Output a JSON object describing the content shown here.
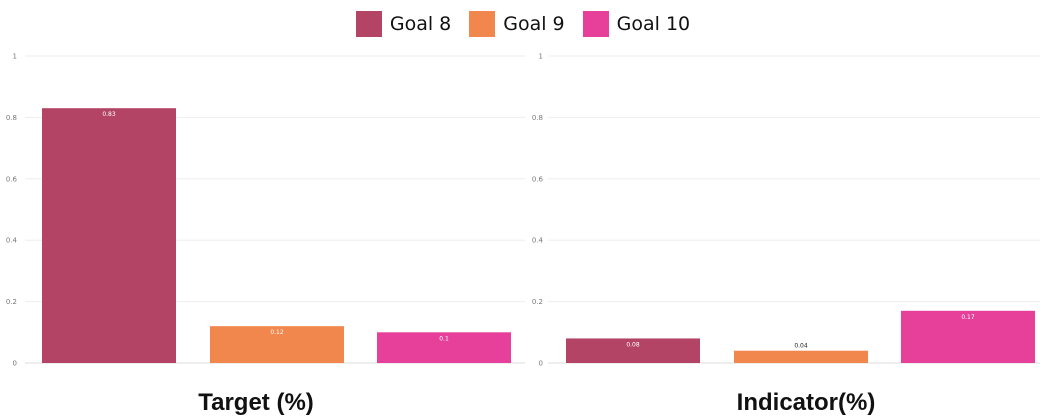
{
  "legend": [
    {
      "label": "Goal 8",
      "color": "#b34466"
    },
    {
      "label": "Goal 9",
      "color": "#f2874e"
    },
    {
      "label": "Goal 10",
      "color": "#e6409b"
    }
  ],
  "chart_data": [
    {
      "type": "bar",
      "title": "Target (%)",
      "categories": [
        "Goal 8",
        "Goal 9",
        "Goal 10"
      ],
      "values": [
        0.83,
        0.12,
        0.1
      ],
      "data_labels": [
        "0.83",
        "0.12",
        "0.1"
      ],
      "ylim": [
        0,
        1
      ],
      "yticks": [
        "0",
        "0.2",
        "0.4",
        "0.6",
        "0.8",
        "1"
      ],
      "grid": true,
      "legend_position": "top-center"
    },
    {
      "type": "bar",
      "title": "Indicator(%)",
      "categories": [
        "Goal 8",
        "Goal 9",
        "Goal 10"
      ],
      "values": [
        0.08,
        0.04,
        0.17
      ],
      "data_labels": [
        "0.08",
        "0.04",
        "0.17"
      ],
      "ylim": [
        0,
        1
      ],
      "yticks": [
        "0",
        "0.2",
        "0.4",
        "0.6",
        "0.8",
        "1"
      ],
      "grid": true,
      "legend_position": "top-center"
    }
  ]
}
